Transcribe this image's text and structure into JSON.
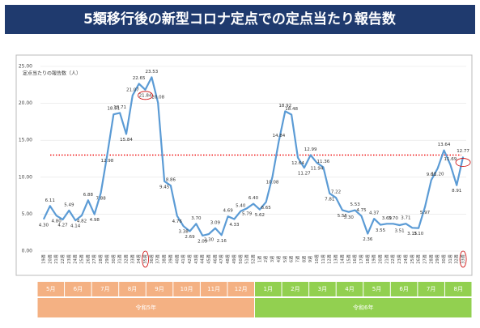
{
  "chart_data": {
    "type": "line",
    "title": "5類移行後の新型コロナ定点での定点当たり報告数",
    "y_label": "定点当たりの報告数（人）",
    "categories": [
      "19週",
      "20週",
      "21週",
      "22週",
      "23週",
      "24週",
      "25週",
      "26週",
      "27週",
      "28週",
      "29週",
      "30週",
      "31週",
      "32週",
      "33週",
      "34週",
      "35週",
      "36週",
      "37週",
      "38週",
      "39週",
      "40週",
      "41週",
      "42週",
      "43週",
      "44週",
      "45週",
      "46週",
      "47週",
      "48週",
      "49週",
      "50週",
      "51週",
      "52週",
      "1週",
      "2週",
      "3週",
      "4週",
      "5週",
      "6週",
      "7週",
      "8週",
      "9週",
      "10週",
      "11週",
      "12週",
      "13週",
      "14週",
      "15週",
      "16週",
      "17週",
      "18週",
      "19週",
      "20週",
      "21週",
      "22週",
      "23週",
      "24週",
      "25週",
      "26週",
      "27週",
      "28週",
      "29週",
      "30週",
      "31週",
      "32週",
      "33週"
    ],
    "series": [
      {
        "color": "#5b9bd5",
        "values": [
          4.3,
          6.11,
          4.8,
          4.27,
          5.49,
          4.14,
          4.82,
          6.88,
          4.98,
          7.88,
          12.98,
          18.51,
          18.71,
          15.84,
          21.07,
          22.65,
          21.84,
          23.53,
          20.08,
          9.45,
          8.86,
          4.76,
          3.38,
          2.69,
          3.7,
          2.09,
          2.3,
          3.09,
          2.16,
          4.69,
          4.33,
          5.4,
          5.79,
          6.4,
          5.62,
          6.65,
          10.08,
          14.84,
          18.92,
          18.48,
          12.64,
          11.27,
          12.99,
          11.94,
          11.36,
          7.81,
          7.22,
          5.55,
          5.3,
          5.53,
          4.75,
          2.36,
          4.37,
          3.55,
          3.69,
          3.7,
          3.51,
          3.71,
          3.15,
          3.1,
          5.97,
          9.6,
          11.2,
          13.64,
          11.69,
          8.91,
          12.77
        ],
        "value_labels": [
          "4.30",
          "6.11",
          "4.80",
          "4.27",
          "5.49",
          "4.14",
          "4.82",
          "6.88",
          "4.98",
          "7.88",
          "12.98",
          "18.51",
          "18.71",
          "15.84",
          "21.07",
          "22.65",
          "21.84",
          "23.53",
          "20.08",
          "9.45",
          "8.86",
          "4.76",
          "3.38",
          "2.69",
          "3.70",
          "2.09",
          "2.30",
          "3.09",
          "2.16",
          "4.69",
          "4.33",
          "5.40",
          "5.79",
          "6.40",
          "5.62",
          "6.65",
          "10.08",
          "14.84",
          "18.92",
          "18.48",
          "12.64",
          "11.27",
          "12.99",
          "11.94",
          "11.36",
          "7.81",
          "7.22",
          "5.55",
          "5.30",
          "5.53",
          "4.75",
          "2.36",
          "4.37",
          "3.55",
          "3.69",
          "3.70",
          "3.51",
          "3.71",
          "3.15",
          "3.10",
          "5.97",
          "9.60",
          "11.20",
          "13.64",
          "11.69",
          "8.91",
          "12.77"
        ]
      }
    ],
    "threshold": 13,
    "ylim": [
      0,
      25
    ],
    "yticks": [
      {
        "value": 0,
        "label": "0.00"
      },
      {
        "value": 5,
        "label": "5.00"
      },
      {
        "value": 10,
        "label": "10.00"
      },
      {
        "value": 15,
        "label": "15.00"
      },
      {
        "value": 20,
        "label": "20.00"
      },
      {
        "value": 25,
        "label": "25.00"
      }
    ],
    "eras": [
      {
        "name": "令和5年",
        "color": "#f4b183",
        "months": [
          "5月",
          "6月",
          "7月",
          "8月",
          "9月",
          "10月",
          "11月",
          "12月"
        ]
      },
      {
        "name": "令和6年",
        "color": "#92d050",
        "months": [
          "1月",
          "2月",
          "3月",
          "4月",
          "5月",
          "6月",
          "7月",
          "8月"
        ]
      }
    ]
  }
}
